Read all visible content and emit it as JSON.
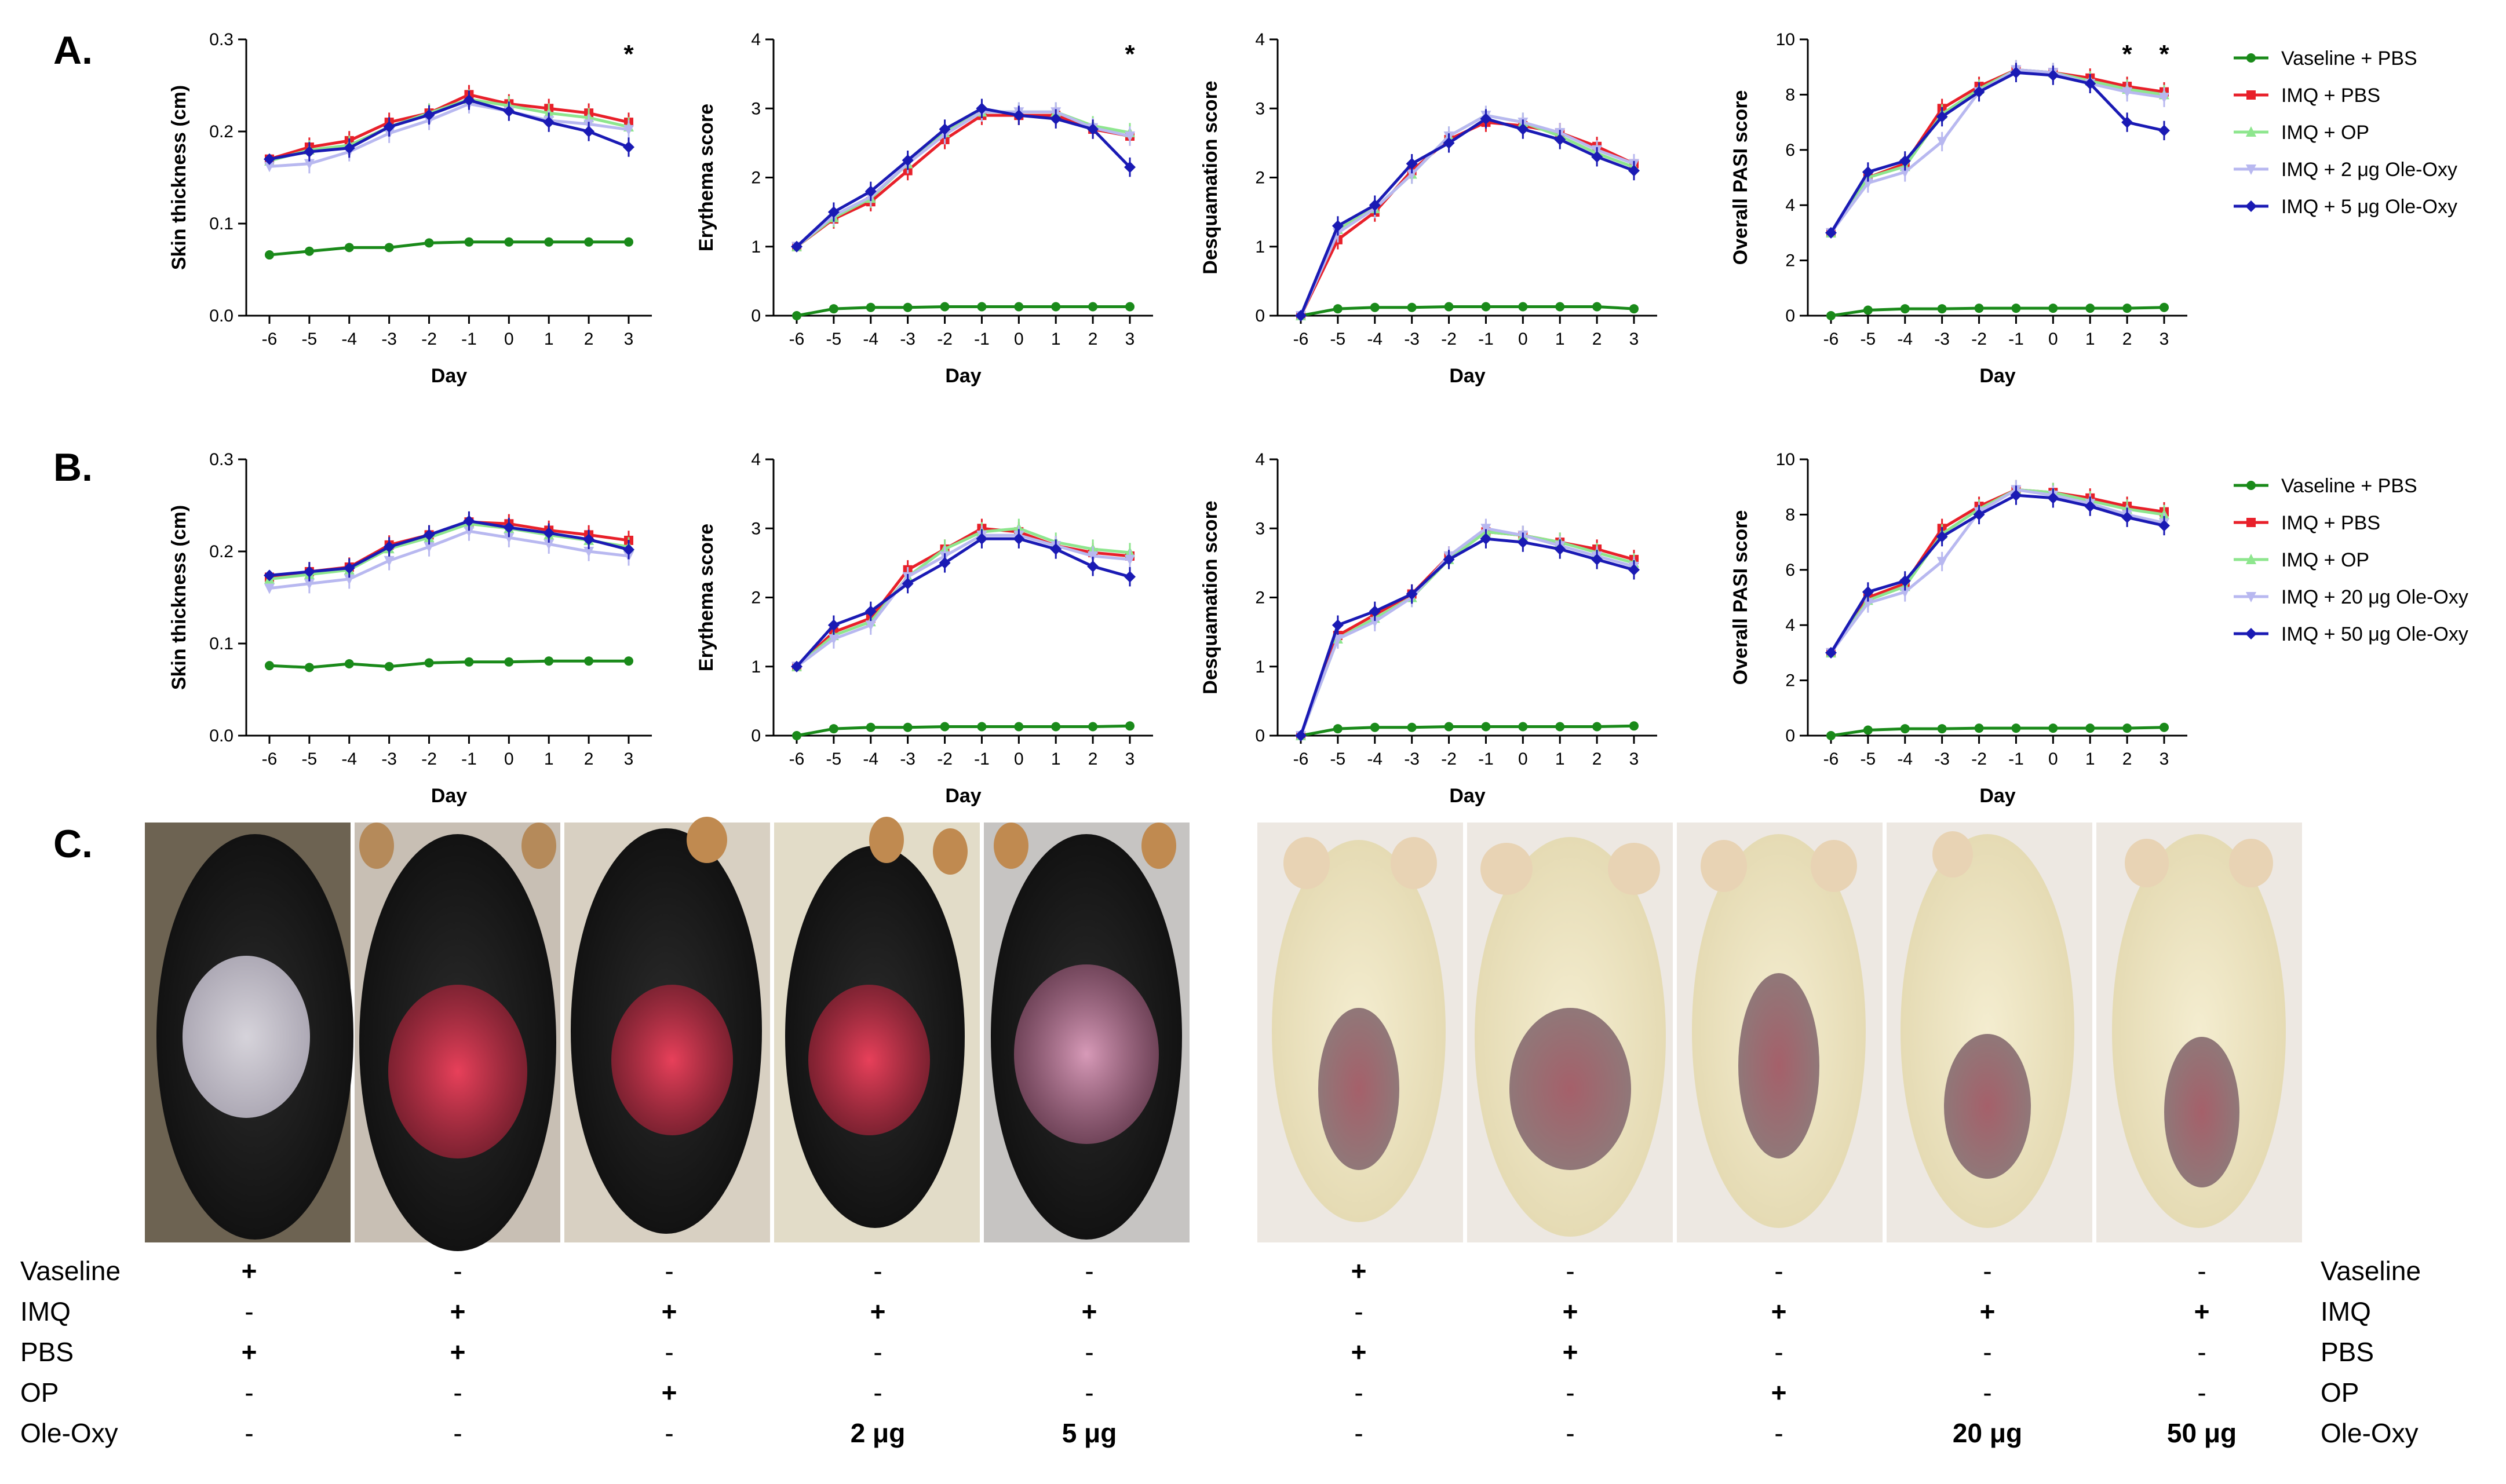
{
  "panels": [
    {
      "letter": "A."
    },
    {
      "letter": "B."
    },
    {
      "letter": "C."
    }
  ],
  "colors": {
    "Vaseline + PBS": "#1a8a1a",
    "IMQ + PBS": "#e8202a",
    "IMQ + OP": "#8ee68e",
    "IMQ + low Ole-Oxy": "#b8b8f0",
    "IMQ + high Ole-Oxy": "#1a1ab4"
  },
  "chart_data": [
    {
      "id": "A1",
      "panel": "A.",
      "type": "line",
      "ylabel": "Skin thickness (cm)",
      "xlabel": "Day",
      "x": [
        -6,
        -5,
        -4,
        -3,
        -2,
        -1,
        0,
        1,
        2,
        3
      ],
      "ylim": [
        0,
        0.3
      ],
      "yticks": [
        "0.0",
        "0.1",
        "0.2",
        "0.3"
      ],
      "series": [
        {
          "name": "Vaseline + PBS",
          "values": [
            0.066,
            0.07,
            0.074,
            0.074,
            0.079,
            0.08,
            0.08,
            0.08,
            0.08,
            0.08
          ]
        },
        {
          "name": "IMQ + PBS",
          "values": [
            0.17,
            0.183,
            0.19,
            0.21,
            0.22,
            0.24,
            0.23,
            0.225,
            0.22,
            0.21
          ]
        },
        {
          "name": "IMQ + OP",
          "values": [
            0.168,
            0.18,
            0.185,
            0.205,
            0.22,
            0.235,
            0.228,
            0.22,
            0.215,
            0.205
          ]
        },
        {
          "name": "IMQ + 2 μg Ole-Oxy",
          "values": [
            0.162,
            0.165,
            0.178,
            0.198,
            0.212,
            0.23,
            0.222,
            0.212,
            0.208,
            0.202
          ]
        },
        {
          "name": "IMQ + 5 μg Ole-Oxy",
          "values": [
            0.17,
            0.178,
            0.182,
            0.205,
            0.218,
            0.234,
            0.222,
            0.21,
            0.2,
            0.183
          ]
        }
      ],
      "annotations": [
        {
          "x": 3,
          "text": "*"
        }
      ]
    },
    {
      "id": "A2",
      "panel": "A.",
      "type": "line",
      "ylabel": "Erythema score",
      "xlabel": "Day",
      "x": [
        -6,
        -5,
        -4,
        -3,
        -2,
        -1,
        0,
        1,
        2,
        3
      ],
      "ylim": [
        0,
        4
      ],
      "yticks": [
        "0",
        "1",
        "2",
        "3",
        "4"
      ],
      "series": [
        {
          "name": "Vaseline + PBS",
          "values": [
            0,
            0.1,
            0.12,
            0.12,
            0.13,
            0.13,
            0.13,
            0.13,
            0.13,
            0.13
          ]
        },
        {
          "name": "IMQ + PBS",
          "values": [
            1,
            1.4,
            1.65,
            2.1,
            2.55,
            2.9,
            2.9,
            2.9,
            2.7,
            2.6
          ]
        },
        {
          "name": "IMQ + OP",
          "values": [
            1,
            1.42,
            1.7,
            2.2,
            2.65,
            2.95,
            2.95,
            2.95,
            2.75,
            2.65
          ]
        },
        {
          "name": "IMQ + 2 μg Ole-Oxy",
          "values": [
            1,
            1.45,
            1.72,
            2.2,
            2.62,
            2.95,
            2.95,
            2.95,
            2.72,
            2.6
          ]
        },
        {
          "name": "IMQ + 5 μg Ole-Oxy",
          "values": [
            1,
            1.5,
            1.8,
            2.25,
            2.7,
            3,
            2.9,
            2.85,
            2.7,
            2.15
          ]
        }
      ],
      "annotations": [
        {
          "x": 3,
          "text": "*"
        }
      ]
    },
    {
      "id": "A3",
      "panel": "A.",
      "type": "line",
      "ylabel": "Desquamation score",
      "xlabel": "Day",
      "x": [
        -6,
        -5,
        -4,
        -3,
        -2,
        -1,
        0,
        1,
        2,
        3
      ],
      "ylim": [
        0,
        4
      ],
      "yticks": [
        "0",
        "1",
        "2",
        "3",
        "4"
      ],
      "series": [
        {
          "name": "Vaseline + PBS",
          "values": [
            0,
            0.1,
            0.12,
            0.12,
            0.13,
            0.13,
            0.13,
            0.13,
            0.13,
            0.1
          ]
        },
        {
          "name": "IMQ + PBS",
          "values": [
            0,
            1.1,
            1.5,
            2.1,
            2.55,
            2.8,
            2.75,
            2.65,
            2.45,
            2.2
          ]
        },
        {
          "name": "IMQ + OP",
          "values": [
            0,
            1.25,
            1.55,
            2.05,
            2.6,
            2.9,
            2.8,
            2.6,
            2.35,
            2.15
          ]
        },
        {
          "name": "IMQ + 2 μg Ole-Oxy",
          "values": [
            0,
            1.2,
            1.55,
            2.05,
            2.6,
            2.9,
            2.8,
            2.65,
            2.4,
            2.2
          ]
        },
        {
          "name": "IMQ + 5 μg Ole-Oxy",
          "values": [
            0,
            1.3,
            1.6,
            2.2,
            2.5,
            2.85,
            2.7,
            2.55,
            2.3,
            2.1
          ]
        }
      ],
      "annotations": []
    },
    {
      "id": "A4",
      "panel": "A.",
      "type": "line",
      "ylabel": "Overall PASI score",
      "xlabel": "Day",
      "x": [
        -6,
        -5,
        -4,
        -3,
        -2,
        -1,
        0,
        1,
        2,
        3
      ],
      "ylim": [
        0,
        10
      ],
      "yticks": [
        "0",
        "2",
        "4",
        "6",
        "8",
        "10"
      ],
      "series": [
        {
          "name": "Vaseline + PBS",
          "values": [
            0,
            0.2,
            0.25,
            0.25,
            0.27,
            0.27,
            0.27,
            0.27,
            0.27,
            0.3
          ]
        },
        {
          "name": "IMQ + PBS",
          "values": [
            3,
            5,
            5.5,
            7.5,
            8.3,
            8.9,
            8.8,
            8.6,
            8.3,
            8.1
          ]
        },
        {
          "name": "IMQ + OP",
          "values": [
            3,
            5,
            5.4,
            7.3,
            8.2,
            8.9,
            8.8,
            8.5,
            8.2,
            8
          ]
        },
        {
          "name": "IMQ + 2 μg Ole-Oxy",
          "values": [
            3,
            4.8,
            5.2,
            6.3,
            8.1,
            8.9,
            8.8,
            8.4,
            8.1,
            7.9
          ]
        },
        {
          "name": "IMQ + 5 μg Ole-Oxy",
          "values": [
            3,
            5.2,
            5.6,
            7.2,
            8.1,
            8.8,
            8.7,
            8.4,
            7,
            6.7
          ]
        }
      ],
      "annotations": [
        {
          "x": 2,
          "text": "*"
        },
        {
          "x": 3,
          "text": "*"
        }
      ]
    },
    {
      "id": "B1",
      "panel": "B.",
      "type": "line",
      "ylabel": "Skin thickness (cm)",
      "xlabel": "Day",
      "x": [
        -6,
        -5,
        -4,
        -3,
        -2,
        -1,
        0,
        1,
        2,
        3
      ],
      "ylim": [
        0,
        0.3
      ],
      "yticks": [
        "0.0",
        "0.1",
        "0.2",
        "0.3"
      ],
      "series": [
        {
          "name": "Vaseline + PBS",
          "values": [
            0.076,
            0.074,
            0.078,
            0.075,
            0.079,
            0.08,
            0.08,
            0.081,
            0.081,
            0.081
          ]
        },
        {
          "name": "IMQ + PBS",
          "values": [
            0.172,
            0.178,
            0.183,
            0.207,
            0.218,
            0.232,
            0.23,
            0.223,
            0.218,
            0.212
          ]
        },
        {
          "name": "IMQ + OP",
          "values": [
            0.17,
            0.175,
            0.18,
            0.203,
            0.215,
            0.23,
            0.225,
            0.218,
            0.212,
            0.205
          ]
        },
        {
          "name": "IMQ + 20 μg Ole-Oxy",
          "values": [
            0.16,
            0.165,
            0.17,
            0.19,
            0.205,
            0.222,
            0.215,
            0.208,
            0.2,
            0.195
          ]
        },
        {
          "name": "IMQ + 50 μg Ole-Oxy",
          "values": [
            0.174,
            0.178,
            0.182,
            0.205,
            0.218,
            0.233,
            0.226,
            0.22,
            0.213,
            0.202
          ]
        }
      ],
      "annotations": []
    },
    {
      "id": "B2",
      "panel": "B.",
      "type": "line",
      "ylabel": "Erythema score",
      "xlabel": "Day",
      "x": [
        -6,
        -5,
        -4,
        -3,
        -2,
        -1,
        0,
        1,
        2,
        3
      ],
      "ylim": [
        0,
        4
      ],
      "yticks": [
        "0",
        "1",
        "2",
        "3",
        "4"
      ],
      "series": [
        {
          "name": "Vaseline + PBS",
          "values": [
            0,
            0.1,
            0.12,
            0.12,
            0.13,
            0.13,
            0.13,
            0.13,
            0.13,
            0.14
          ]
        },
        {
          "name": "IMQ + PBS",
          "values": [
            1,
            1.5,
            1.7,
            2.4,
            2.7,
            3,
            2.95,
            2.75,
            2.65,
            2.6
          ]
        },
        {
          "name": "IMQ + OP",
          "values": [
            1,
            1.45,
            1.65,
            2.3,
            2.7,
            2.95,
            3,
            2.8,
            2.7,
            2.65
          ]
        },
        {
          "name": "IMQ + 20 μg Ole-Oxy",
          "values": [
            1,
            1.4,
            1.6,
            2.3,
            2.6,
            2.9,
            2.9,
            2.75,
            2.6,
            2.55
          ]
        },
        {
          "name": "IMQ + 50 μg Ole-Oxy",
          "values": [
            1,
            1.6,
            1.8,
            2.2,
            2.5,
            2.85,
            2.85,
            2.7,
            2.45,
            2.3
          ]
        }
      ],
      "annotations": []
    },
    {
      "id": "B3",
      "panel": "B.",
      "type": "line",
      "ylabel": "Desquamation score",
      "xlabel": "Day",
      "x": [
        -6,
        -5,
        -4,
        -3,
        -2,
        -1,
        0,
        1,
        2,
        3
      ],
      "ylim": [
        0,
        4
      ],
      "yticks": [
        "0",
        "1",
        "2",
        "3",
        "4"
      ],
      "series": [
        {
          "name": "Vaseline + PBS",
          "values": [
            0,
            0.1,
            0.12,
            0.12,
            0.13,
            0.13,
            0.13,
            0.13,
            0.13,
            0.14
          ]
        },
        {
          "name": "IMQ + PBS",
          "values": [
            0,
            1.45,
            1.75,
            2.05,
            2.6,
            2.95,
            2.9,
            2.8,
            2.7,
            2.55
          ]
        },
        {
          "name": "IMQ + OP",
          "values": [
            0,
            1.4,
            1.7,
            2,
            2.55,
            2.95,
            2.9,
            2.8,
            2.65,
            2.5
          ]
        },
        {
          "name": "IMQ + 20 μg Ole-Oxy",
          "values": [
            0,
            1.4,
            1.65,
            2,
            2.6,
            3,
            2.9,
            2.75,
            2.6,
            2.45
          ]
        },
        {
          "name": "IMQ + 50 μg Ole-Oxy",
          "values": [
            0,
            1.6,
            1.8,
            2.05,
            2.55,
            2.85,
            2.8,
            2.7,
            2.55,
            2.4
          ]
        }
      ],
      "annotations": []
    },
    {
      "id": "B4",
      "panel": "B.",
      "type": "line",
      "ylabel": "Overall PASI score",
      "xlabel": "Day",
      "x": [
        -6,
        -5,
        -4,
        -3,
        -2,
        -1,
        0,
        1,
        2,
        3
      ],
      "ylim": [
        0,
        10
      ],
      "yticks": [
        "0",
        "2",
        "4",
        "6",
        "8",
        "10"
      ],
      "series": [
        {
          "name": "Vaseline + PBS",
          "values": [
            0,
            0.2,
            0.25,
            0.25,
            0.27,
            0.27,
            0.27,
            0.27,
            0.27,
            0.3
          ]
        },
        {
          "name": "IMQ + PBS",
          "values": [
            3,
            5,
            5.5,
            7.5,
            8.3,
            8.9,
            8.8,
            8.6,
            8.3,
            8.1
          ]
        },
        {
          "name": "IMQ + OP",
          "values": [
            3,
            4.9,
            5.4,
            7.3,
            8.2,
            8.9,
            8.8,
            8.5,
            8.2,
            8
          ]
        },
        {
          "name": "IMQ + 20 μg Ole-Oxy",
          "values": [
            3,
            4.8,
            5.2,
            6.3,
            8.1,
            8.9,
            8.7,
            8.4,
            8,
            7.7
          ]
        },
        {
          "name": "IMQ + 50 μg Ole-Oxy",
          "values": [
            3,
            5.2,
            5.6,
            7.2,
            8,
            8.7,
            8.6,
            8.3,
            7.9,
            7.6
          ]
        }
      ],
      "annotations": []
    }
  ],
  "legend_A": [
    "Vaseline + PBS",
    "IMQ + PBS",
    "IMQ + OP",
    "IMQ + 2 μg Ole-Oxy",
    "IMQ + 5 μg Ole-Oxy"
  ],
  "legend_B": [
    "Vaseline + PBS",
    "IMQ + PBS",
    "IMQ + OP",
    "IMQ + 20 μg Ole-Oxy",
    "IMQ + 50 μg Ole-Oxy"
  ],
  "photo_table": {
    "row_labels": [
      "Vaseline",
      "IMQ",
      "PBS",
      "OP",
      "Ole-Oxy"
    ],
    "left_columns": [
      [
        "+",
        "-",
        "+",
        "-",
        "-"
      ],
      [
        "-",
        "+",
        "+",
        "-",
        "-"
      ],
      [
        "-",
        "+",
        "-",
        "+",
        "-"
      ],
      [
        "-",
        "+",
        "-",
        "-",
        "2 μg"
      ],
      [
        "-",
        "+",
        "-",
        "-",
        "5 μg"
      ]
    ],
    "right_columns": [
      [
        "+",
        "-",
        "+",
        "-",
        "-"
      ],
      [
        "-",
        "+",
        "+",
        "-",
        "-"
      ],
      [
        "-",
        "+",
        "-",
        "+",
        "-"
      ],
      [
        "-",
        "+",
        "-",
        "-",
        "20 μg"
      ],
      [
        "-",
        "+",
        "-",
        "-",
        "50 μg"
      ]
    ]
  }
}
